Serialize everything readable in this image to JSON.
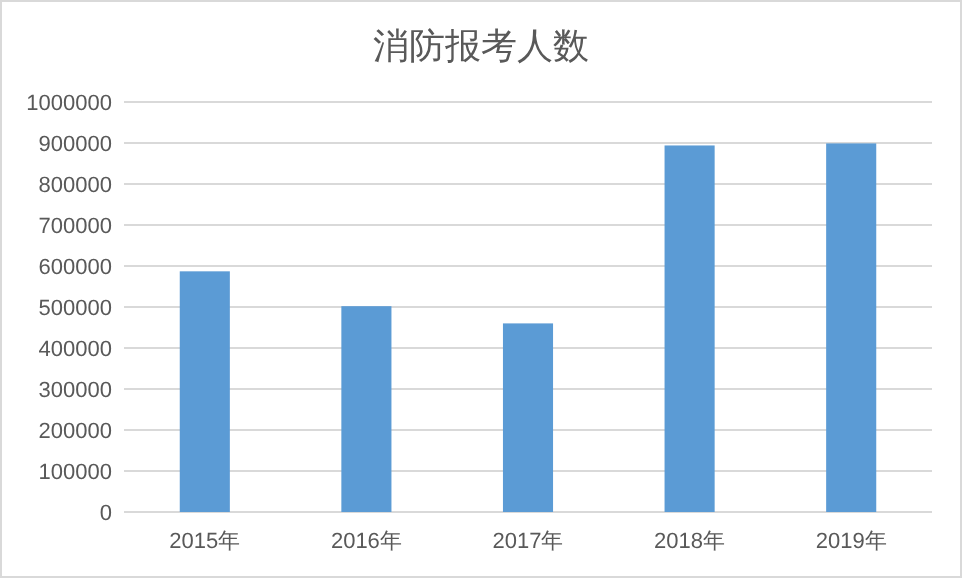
{
  "chart_data": {
    "type": "bar",
    "title": "消防报考人数",
    "categories": [
      "2015年",
      "2016年",
      "2017年",
      "2018年",
      "2019年"
    ],
    "values": [
      587000,
      502000,
      460000,
      894000,
      899000
    ],
    "color": "#5b9bd5",
    "ylim": [
      0,
      1000000
    ],
    "yticks": [
      0,
      100000,
      200000,
      300000,
      400000,
      500000,
      600000,
      700000,
      800000,
      900000,
      1000000
    ],
    "grid": "y"
  }
}
